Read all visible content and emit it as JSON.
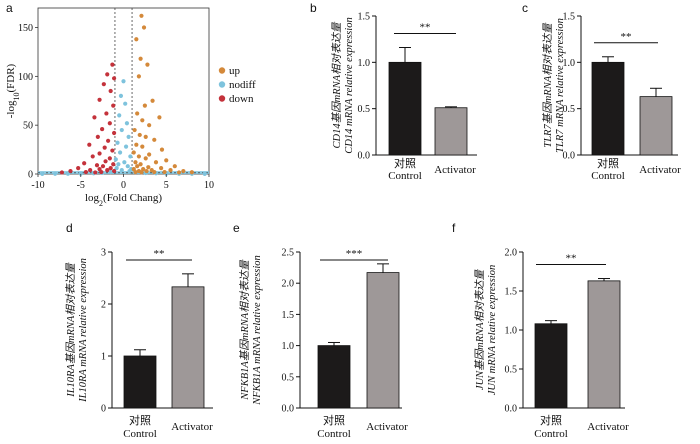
{
  "panel_labels": [
    "a",
    "b",
    "c",
    "d",
    "e",
    "f"
  ],
  "colors": {
    "up": "#d4893a",
    "nodiff": "#7ec3dd",
    "down": "#c4323b",
    "control_bar": "#1c1a1a",
    "activator_bar": "#9e9898"
  },
  "chart_data": [
    {
      "panel": "a",
      "type": "scatter",
      "title": "",
      "xlabel": "log2(Fold Chang)",
      "ylabel": "-log10(FDR)",
      "xlim": [
        -10,
        10
      ],
      "ylim": [
        0,
        170
      ],
      "xticks": [
        -10,
        -5,
        0,
        5,
        10
      ],
      "yticks": [
        0,
        50,
        100,
        150
      ],
      "thresholds": {
        "x": [
          -1,
          1
        ],
        "y": 1.3
      },
      "legend": [
        "up",
        "nodiff",
        "down"
      ],
      "legend_position": "right",
      "series": [
        {
          "name": "up",
          "color": "#d4893a",
          "points": [
            [
              2.1,
              162
            ],
            [
              2.4,
              150
            ],
            [
              1.5,
              138
            ],
            [
              2.0,
              118
            ],
            [
              2.8,
              112
            ],
            [
              1.8,
              100
            ],
            [
              3.4,
              75
            ],
            [
              2.5,
              70
            ],
            [
              1.6,
              62
            ],
            [
              2.2,
              55
            ],
            [
              4.2,
              58
            ],
            [
              3.0,
              50
            ],
            [
              1.3,
              45
            ],
            [
              1.9,
              40
            ],
            [
              2.6,
              38
            ],
            [
              3.6,
              35
            ],
            [
              1.5,
              30
            ],
            [
              2.2,
              28
            ],
            [
              4.5,
              25
            ],
            [
              1.2,
              22
            ],
            [
              3.0,
              20
            ],
            [
              1.8,
              18
            ],
            [
              2.6,
              16
            ],
            [
              5.0,
              14
            ],
            [
              1.4,
              12
            ],
            [
              3.8,
              12
            ],
            [
              2.0,
              10
            ],
            [
              6.0,
              8
            ],
            [
              1.6,
              8
            ],
            [
              2.9,
              7
            ],
            [
              4.4,
              6
            ],
            [
              1.2,
              5
            ],
            [
              2.3,
              5
            ],
            [
              3.3,
              4
            ],
            [
              5.5,
              4
            ],
            [
              1.8,
              3
            ],
            [
              2.7,
              3
            ],
            [
              7.0,
              3
            ],
            [
              1.4,
              2
            ],
            [
              3.6,
              2
            ],
            [
              4.8,
              2
            ],
            [
              8.0,
              1.8
            ],
            [
              2.1,
              1.8
            ],
            [
              6.5,
              1.6
            ]
          ]
        },
        {
          "name": "nodiff",
          "color": "#7ec3dd",
          "points": [
            [
              0.0,
              95
            ],
            [
              -0.3,
              80
            ],
            [
              0.2,
              72
            ],
            [
              -0.5,
              60
            ],
            [
              0.4,
              52
            ],
            [
              -0.2,
              45
            ],
            [
              0.6,
              38
            ],
            [
              -0.7,
              32
            ],
            [
              0.3,
              28
            ],
            [
              -0.4,
              22
            ],
            [
              0.8,
              18
            ],
            [
              -0.9,
              15
            ],
            [
              0.1,
              12
            ],
            [
              -0.6,
              10
            ],
            [
              0.5,
              8
            ],
            [
              -0.8,
              6
            ],
            [
              0.9,
              5
            ],
            [
              -0.2,
              4
            ],
            [
              0.7,
              3
            ],
            [
              -1.5,
              2
            ],
            [
              1.8,
              2
            ],
            [
              -2.5,
              1.2
            ],
            [
              2.6,
              1.0
            ],
            [
              -3.5,
              0.8
            ],
            [
              3.8,
              0.7
            ],
            [
              -5,
              0.4
            ],
            [
              5,
              0.4
            ],
            [
              -6.5,
              0.3
            ],
            [
              6.5,
              0.3
            ],
            [
              -8,
              0.2
            ],
            [
              8,
              0.2
            ],
            [
              -9.5,
              0.1
            ],
            [
              9.5,
              0.1
            ]
          ]
        },
        {
          "name": "down",
          "color": "#c4323b",
          "points": [
            [
              -1.3,
              112
            ],
            [
              -1.9,
              102
            ],
            [
              -1.1,
              98
            ],
            [
              -2.3,
              92
            ],
            [
              -1.5,
              85
            ],
            [
              -2.8,
              76
            ],
            [
              -1.2,
              70
            ],
            [
              -2.0,
              62
            ],
            [
              -3.4,
              58
            ],
            [
              -1.6,
              52
            ],
            [
              -2.5,
              46
            ],
            [
              -1.1,
              42
            ],
            [
              -3.0,
              38
            ],
            [
              -1.8,
              34
            ],
            [
              -4.0,
              30
            ],
            [
              -2.2,
              27
            ],
            [
              -1.3,
              24
            ],
            [
              -2.8,
              21
            ],
            [
              -3.6,
              18
            ],
            [
              -1.6,
              16
            ],
            [
              -2.1,
              13
            ],
            [
              -4.6,
              11
            ],
            [
              -1.2,
              10
            ],
            [
              -3.1,
              9
            ],
            [
              -2.4,
              8
            ],
            [
              -5.3,
              6
            ],
            [
              -1.5,
              6
            ],
            [
              -2.8,
              5
            ],
            [
              -3.9,
              4
            ],
            [
              -1.9,
              4
            ],
            [
              -6.2,
              3
            ],
            [
              -1.1,
              3
            ],
            [
              -2.6,
              2
            ],
            [
              -4.4,
              2
            ],
            [
              -7.2,
              1.6
            ],
            [
              -3.3,
              1.6
            ]
          ]
        }
      ]
    },
    {
      "panel": "b",
      "type": "bar",
      "title": "",
      "categories": [
        "对照\nControl",
        "Activator"
      ],
      "values": [
        1.0,
        0.51
      ],
      "errors": [
        0.16,
        0.01
      ],
      "ylim": [
        0,
        1.5
      ],
      "yticks": [
        0,
        0.5,
        1.0,
        1.5
      ],
      "tick_decimals": 1,
      "ylabel": [
        "CD14基因mRNA相对表达量",
        "CD14 mRNA relative expression"
      ],
      "significance": "**"
    },
    {
      "panel": "c",
      "type": "bar",
      "title": "",
      "categories": [
        "对照\nControl",
        "Activator"
      ],
      "values": [
        1.0,
        0.63
      ],
      "errors": [
        0.06,
        0.09
      ],
      "ylim": [
        0,
        1.5
      ],
      "yticks": [
        0,
        0.5,
        1.0,
        1.5
      ],
      "tick_decimals": 1,
      "ylabel": [
        "TLR7基因mRNA相对表达量",
        "TLR7 mRNA relative expression"
      ],
      "significance": "**"
    },
    {
      "panel": "d",
      "type": "bar",
      "title": "",
      "categories": [
        "对照\nControl",
        "Activator"
      ],
      "values": [
        1.0,
        2.33
      ],
      "errors": [
        0.12,
        0.25
      ],
      "ylim": [
        0,
        3
      ],
      "yticks": [
        0,
        1,
        2,
        3
      ],
      "tick_decimals": 0,
      "ylabel": [
        "IL10RA基因mRNA相对表达量",
        "IL10RA mRNA relative expression"
      ],
      "significance": "**"
    },
    {
      "panel": "e",
      "type": "bar",
      "title": "",
      "categories": [
        "对照\nControl",
        "Activator"
      ],
      "values": [
        1.0,
        2.17
      ],
      "errors": [
        0.05,
        0.14
      ],
      "ylim": [
        0,
        2.5
      ],
      "yticks": [
        0,
        0.5,
        1.0,
        1.5,
        2.0,
        2.5
      ],
      "tick_decimals": 1,
      "ylabel": [
        "NFKB1A基因mRNA相对表达量",
        "NFKB1A mRNA relative expression"
      ],
      "significance": "***"
    },
    {
      "panel": "f",
      "type": "bar",
      "title": "",
      "categories": [
        "对照\nControl",
        "Activator"
      ],
      "values": [
        1.08,
        1.63
      ],
      "errors": [
        0.04,
        0.03
      ],
      "ylim": [
        0,
        2.0
      ],
      "yticks": [
        0,
        0.5,
        1.0,
        1.5,
        2.0
      ],
      "tick_decimals": 1,
      "ylabel": [
        "JUN基因mRNA相对表达量",
        "JUN mRNA relative expression"
      ],
      "significance": "**"
    }
  ]
}
